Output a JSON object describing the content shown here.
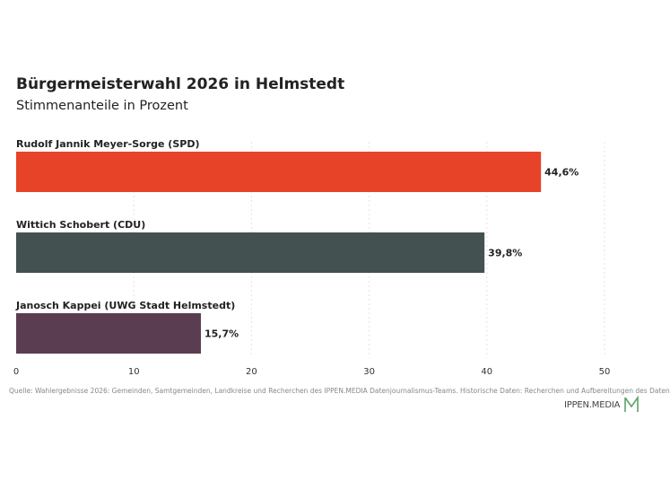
{
  "header": {
    "title": "Bürgermeisterwahl 2026 in Helmstedt",
    "subtitle": "Stimmenanteile in Prozent"
  },
  "chart_data": {
    "type": "bar",
    "orientation": "horizontal",
    "categories": [
      "Rudolf Jannik Meyer-Sorge (SPD)",
      "Wittich Schobert (CDU)",
      "Janosch Kappei (UWG Stadt Helmstedt)"
    ],
    "values": [
      44.6,
      39.8,
      15.7
    ],
    "value_labels": [
      "44,6%",
      "39,8%",
      "15,7%"
    ],
    "colors": [
      "#e64329",
      "#435151",
      "#5b3d52"
    ],
    "xlim": [
      0,
      50
    ],
    "x_ticks": [
      0,
      10,
      20,
      30,
      40,
      50
    ],
    "grid": true,
    "title": "Bürgermeisterwahl 2026 in Helmstedt",
    "subtitle": "Stimmenanteile in Prozent"
  },
  "footer": {
    "source": "Quelle: Wahlergebnisse 2026: Gemeinden, Samtgemeinden, Landkreise und Recherchen des IPPEN.MEDIA Datenjournalismus-Teams. Historische Daten: Recherchen und Aufbereitungen des Daten",
    "brand": "IPPEN.MEDIA",
    "brand_icon": "ippen-media-logo-icon",
    "brand_color": "#5aa469"
  }
}
